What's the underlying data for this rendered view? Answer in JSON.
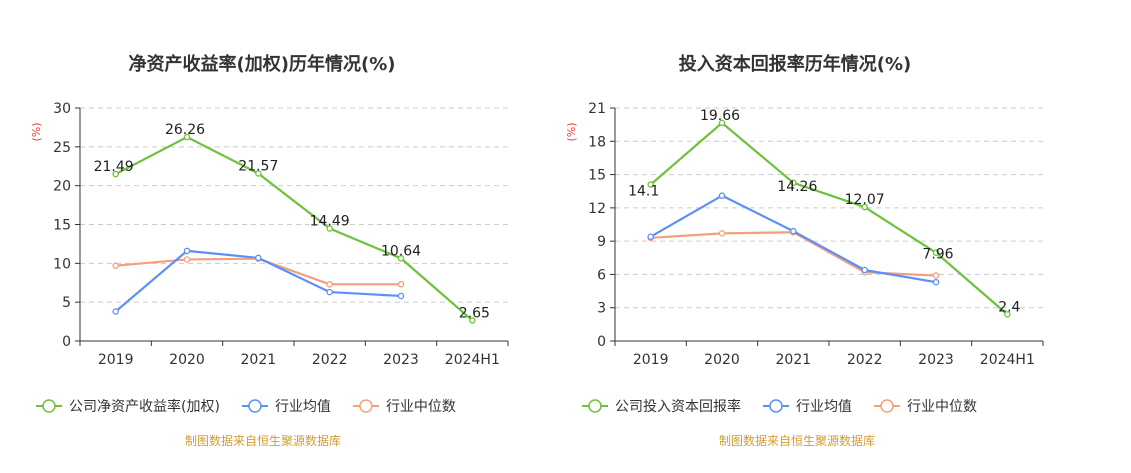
{
  "colors": {
    "company": "#6dc13b",
    "avg": "#5b8ff9",
    "median": "#f4a07a",
    "unit": "#e8413c",
    "source": "#d19d2e",
    "grid": "#cccccc",
    "axis": "#333333"
  },
  "source_text": "制图数据来自恒生聚源数据库",
  "chart_data": [
    {
      "type": "line",
      "title": "净资产收益率(加权)历年情况(%)",
      "ylabel": "(%)",
      "xlabel": "",
      "ylim": [
        0,
        30
      ],
      "yticks": [
        0,
        5,
        10,
        15,
        20,
        25,
        30
      ],
      "categories": [
        "2019",
        "2020",
        "2021",
        "2022",
        "2023",
        "2024H1"
      ],
      "series": [
        {
          "name": "公司净资产收益率(加权)",
          "key": "company",
          "values": [
            21.49,
            26.26,
            21.57,
            14.49,
            10.64,
            2.65
          ],
          "labels": [
            "21.49",
            "26.26",
            "21.57",
            "14.49",
            "10.64",
            "2.65"
          ]
        },
        {
          "name": "行业均值",
          "key": "avg",
          "values": [
            3.8,
            11.6,
            10.7,
            6.3,
            5.8,
            null
          ]
        },
        {
          "name": "行业中位数",
          "key": "median",
          "values": [
            9.7,
            10.5,
            10.6,
            7.3,
            7.3,
            null
          ]
        }
      ]
    },
    {
      "type": "line",
      "title": "投入资本回报率历年情况(%)",
      "ylabel": "(%)",
      "xlabel": "",
      "ylim": [
        0,
        21
      ],
      "yticks": [
        0,
        3,
        6,
        9,
        12,
        15,
        18,
        21
      ],
      "categories": [
        "2019",
        "2020",
        "2021",
        "2022",
        "2023",
        "2024H1"
      ],
      "series": [
        {
          "name": "公司投入资本回报率",
          "key": "company",
          "values": [
            14.1,
            19.66,
            14.26,
            12.07,
            7.96,
            2.4
          ],
          "labels": [
            "14.1",
            "19.66",
            "14.26",
            "12.07",
            "7.96",
            "2.4"
          ]
        },
        {
          "name": "行业均值",
          "key": "avg",
          "values": [
            9.4,
            13.1,
            9.9,
            6.4,
            5.3,
            null
          ]
        },
        {
          "name": "行业中位数",
          "key": "median",
          "values": [
            9.3,
            9.7,
            9.8,
            6.2,
            5.9,
            null
          ]
        }
      ]
    }
  ]
}
